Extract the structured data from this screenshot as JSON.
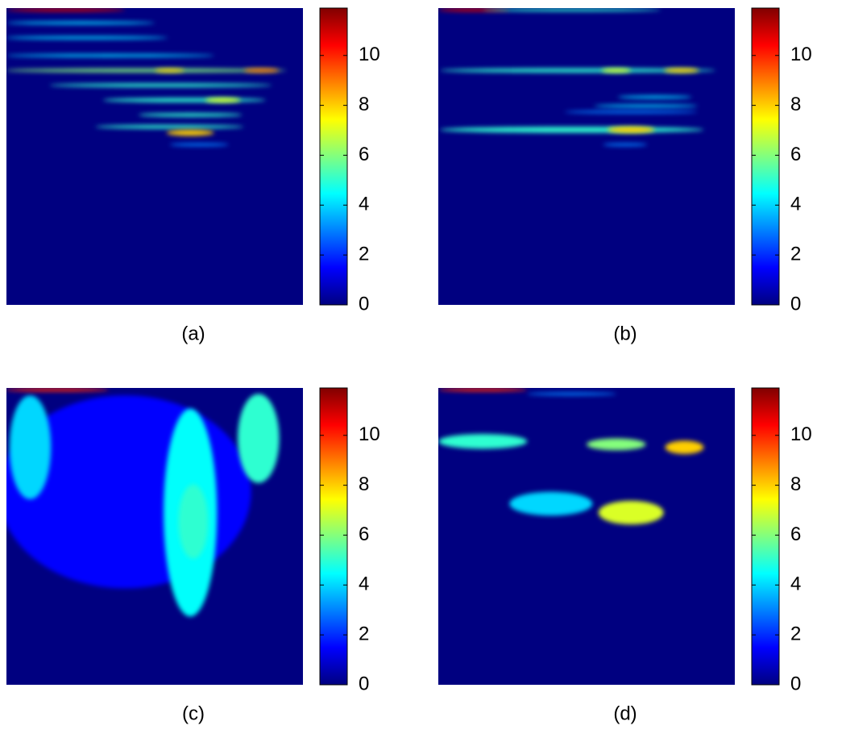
{
  "chart_data": [
    {
      "type": "heatmap",
      "caption": "(a)",
      "clim": [
        0,
        11.9
      ],
      "cticks": [
        0,
        2,
        4,
        6,
        8,
        10
      ],
      "blobs": [
        {
          "x": 0.2,
          "y": 0.006,
          "w": 0.4,
          "h": 0.012,
          "value": 11
        },
        {
          "x": 0.25,
          "y": 0.05,
          "w": 0.5,
          "h": 0.01,
          "value": 4
        },
        {
          "x": 0.27,
          "y": 0.1,
          "w": 0.55,
          "h": 0.01,
          "value": 4
        },
        {
          "x": 0.35,
          "y": 0.16,
          "w": 0.7,
          "h": 0.01,
          "value": 4
        },
        {
          "x": 0.47,
          "y": 0.21,
          "w": 0.95,
          "h": 0.012,
          "value": 6
        },
        {
          "x": 0.55,
          "y": 0.21,
          "w": 0.1,
          "h": 0.012,
          "value": 8
        },
        {
          "x": 0.86,
          "y": 0.21,
          "w": 0.12,
          "h": 0.014,
          "value": 9
        },
        {
          "x": 0.52,
          "y": 0.26,
          "w": 0.75,
          "h": 0.012,
          "value": 5
        },
        {
          "x": 0.6,
          "y": 0.31,
          "w": 0.55,
          "h": 0.014,
          "value": 5
        },
        {
          "x": 0.73,
          "y": 0.31,
          "w": 0.12,
          "h": 0.016,
          "value": 7
        },
        {
          "x": 0.62,
          "y": 0.36,
          "w": 0.35,
          "h": 0.012,
          "value": 5
        },
        {
          "x": 0.55,
          "y": 0.4,
          "w": 0.5,
          "h": 0.012,
          "value": 5
        },
        {
          "x": 0.62,
          "y": 0.42,
          "w": 0.16,
          "h": 0.02,
          "value": 8
        },
        {
          "x": 0.65,
          "y": 0.46,
          "w": 0.2,
          "h": 0.01,
          "value": 3
        }
      ]
    },
    {
      "type": "heatmap",
      "caption": "(b)",
      "clim": [
        0,
        11.9
      ],
      "cticks": [
        0,
        2,
        4,
        6,
        8,
        10
      ],
      "blobs": [
        {
          "x": 0.12,
          "y": 0.006,
          "w": 0.24,
          "h": 0.012,
          "value": 11
        },
        {
          "x": 0.45,
          "y": 0.006,
          "w": 0.6,
          "h": 0.01,
          "value": 5
        },
        {
          "x": 0.47,
          "y": 0.21,
          "w": 0.93,
          "h": 0.014,
          "value": 5
        },
        {
          "x": 0.6,
          "y": 0.21,
          "w": 0.1,
          "h": 0.014,
          "value": 7
        },
        {
          "x": 0.82,
          "y": 0.21,
          "w": 0.12,
          "h": 0.016,
          "value": 8
        },
        {
          "x": 0.73,
          "y": 0.3,
          "w": 0.25,
          "h": 0.01,
          "value": 4
        },
        {
          "x": 0.7,
          "y": 0.33,
          "w": 0.35,
          "h": 0.01,
          "value": 4
        },
        {
          "x": 0.65,
          "y": 0.35,
          "w": 0.45,
          "h": 0.01,
          "value": 3
        },
        {
          "x": 0.45,
          "y": 0.41,
          "w": 0.89,
          "h": 0.02,
          "value": 5
        },
        {
          "x": 0.65,
          "y": 0.41,
          "w": 0.16,
          "h": 0.022,
          "value": 8
        },
        {
          "x": 0.63,
          "y": 0.46,
          "w": 0.15,
          "h": 0.01,
          "value": 3
        }
      ]
    },
    {
      "type": "heatmap",
      "caption": "(c)",
      "clim": [
        0,
        11.9
      ],
      "cticks": [
        0,
        2,
        4,
        6,
        8,
        10
      ],
      "blobs": [
        {
          "x": 0.4,
          "y": 0.35,
          "w": 0.85,
          "h": 0.65,
          "value": 1.5
        },
        {
          "x": 0.08,
          "y": 0.2,
          "w": 0.14,
          "h": 0.35,
          "value": 4
        },
        {
          "x": 0.62,
          "y": 0.42,
          "w": 0.18,
          "h": 0.7,
          "value": 4.5
        },
        {
          "x": 0.63,
          "y": 0.45,
          "w": 0.1,
          "h": 0.25,
          "value": 5
        },
        {
          "x": 0.85,
          "y": 0.17,
          "w": 0.14,
          "h": 0.3,
          "value": 5
        },
        {
          "x": 0.17,
          "y": 0.006,
          "w": 0.35,
          "h": 0.012,
          "value": 10
        }
      ]
    },
    {
      "type": "heatmap",
      "caption": "(d)",
      "clim": [
        0,
        11.9
      ],
      "cticks": [
        0,
        2,
        4,
        6,
        8,
        10
      ],
      "blobs": [
        {
          "x": 0.15,
          "y": 0.006,
          "w": 0.3,
          "h": 0.012,
          "value": 10
        },
        {
          "x": 0.45,
          "y": 0.02,
          "w": 0.3,
          "h": 0.01,
          "value": 3
        },
        {
          "x": 0.15,
          "y": 0.18,
          "w": 0.3,
          "h": 0.05,
          "value": 5
        },
        {
          "x": 0.6,
          "y": 0.19,
          "w": 0.2,
          "h": 0.04,
          "value": 6
        },
        {
          "x": 0.83,
          "y": 0.2,
          "w": 0.13,
          "h": 0.045,
          "value": 8
        },
        {
          "x": 0.38,
          "y": 0.39,
          "w": 0.28,
          "h": 0.08,
          "value": 4
        },
        {
          "x": 0.65,
          "y": 0.42,
          "w": 0.22,
          "h": 0.08,
          "value": 7
        }
      ]
    }
  ]
}
